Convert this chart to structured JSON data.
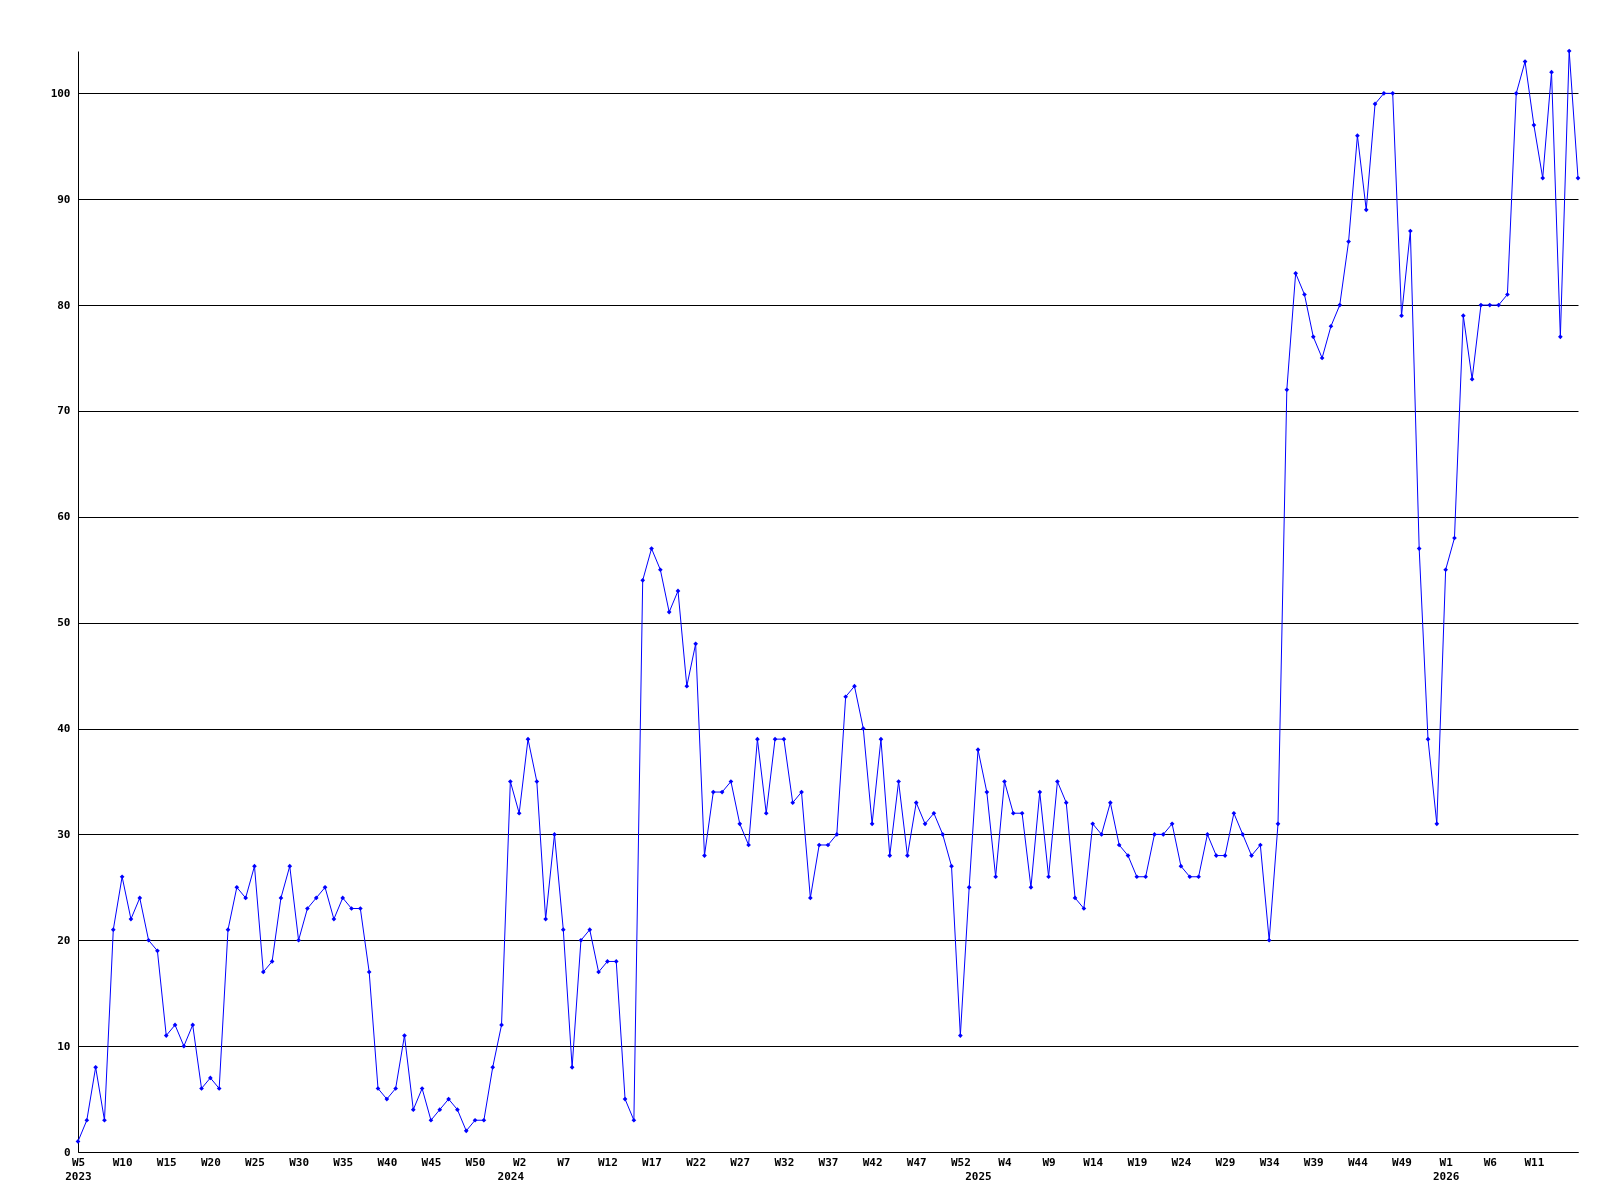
{
  "chart_data": {
    "type": "line",
    "categories": [
      "W5\n2023",
      null,
      null,
      null,
      null,
      "W10",
      null,
      null,
      null,
      null,
      "W15",
      null,
      null,
      null,
      null,
      "W20",
      null,
      null,
      null,
      null,
      "W25",
      null,
      null,
      null,
      null,
      "W30",
      null,
      null,
      null,
      null,
      "W35",
      null,
      null,
      null,
      null,
      "W40",
      null,
      null,
      null,
      null,
      "W45",
      null,
      null,
      null,
      null,
      "W50",
      null,
      null,
      null,
      "\n2024",
      "W2",
      null,
      null,
      null,
      null,
      "W7",
      null,
      null,
      null,
      null,
      "W12",
      null,
      null,
      null,
      null,
      "W17",
      null,
      null,
      null,
      null,
      "W22",
      null,
      null,
      null,
      null,
      "W27",
      null,
      null,
      null,
      null,
      "W32",
      null,
      null,
      null,
      null,
      "W37",
      null,
      null,
      null,
      null,
      "W42",
      null,
      null,
      null,
      null,
      "W47",
      null,
      null,
      null,
      null,
      "W52",
      null,
      "\n2025",
      null,
      null,
      "W4",
      null,
      null,
      null,
      null,
      "W9",
      null,
      null,
      null,
      null,
      "W14",
      null,
      null,
      null,
      null,
      "W19",
      null,
      null,
      null,
      null,
      "W24",
      null,
      null,
      null,
      null,
      "W29",
      null,
      null,
      null,
      null,
      "W34",
      null,
      null,
      null,
      null,
      "W39",
      null,
      null,
      null,
      null,
      "W44",
      null,
      null,
      null,
      null,
      "W49",
      null,
      null,
      null,
      null,
      "W1\n2026",
      null,
      null,
      null,
      null,
      "W6",
      null,
      null,
      null,
      null,
      "W11",
      null,
      null,
      null,
      null,
      null
    ],
    "series": [
      {
        "color": "#0000ff",
        "values": [
          1,
          3,
          8,
          3,
          21,
          26,
          22,
          24,
          20,
          19,
          11,
          12,
          10,
          12,
          6,
          7,
          6,
          21,
          25,
          24,
          27,
          17,
          18,
          24,
          27,
          20,
          23,
          24,
          25,
          22,
          24,
          23,
          23,
          17,
          6,
          5,
          6,
          11,
          4,
          6,
          3,
          4,
          5,
          4,
          2,
          3,
          3,
          8,
          12,
          35,
          32,
          39,
          35,
          22,
          30,
          21,
          8,
          20,
          21,
          17,
          18,
          18,
          5,
          3,
          54,
          57,
          55,
          51,
          53,
          44,
          48,
          28,
          34,
          34,
          35,
          31,
          29,
          39,
          32,
          39,
          39,
          33,
          34,
          24,
          29,
          29,
          30,
          43,
          44,
          40,
          31,
          39,
          28,
          35,
          28,
          33,
          31,
          32,
          30,
          27,
          11,
          25,
          38,
          34,
          26,
          35,
          32,
          32,
          25,
          34,
          26,
          35,
          33,
          24,
          23,
          31,
          30,
          33,
          29,
          28,
          26,
          26,
          30,
          30,
          31,
          27,
          26,
          26,
          30,
          28,
          28,
          32,
          30,
          28,
          29,
          20,
          31,
          72,
          83,
          81,
          77,
          75,
          78,
          80,
          86,
          96,
          89,
          99,
          100,
          100,
          79,
          87,
          57,
          39,
          31,
          55,
          58,
          79,
          73,
          80,
          80,
          80,
          81,
          100,
          103,
          97,
          92,
          102,
          77,
          104,
          92
        ]
      }
    ],
    "ylim": [
      0,
      104
    ],
    "yticks": [
      0,
      10,
      20,
      30,
      40,
      50,
      60,
      70,
      80,
      90,
      100
    ],
    "grid": "y",
    "marker": "diamond",
    "line_style": "solid"
  }
}
